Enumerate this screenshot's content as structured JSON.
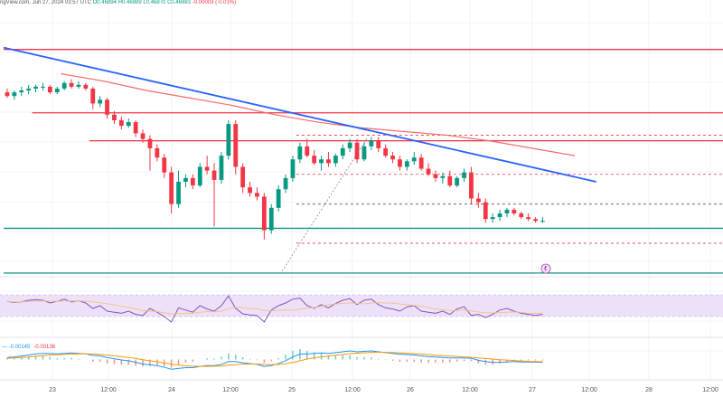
{
  "header": {
    "source": "ngView.com, Jun 27, 2024 03:57 UTC",
    "open": "O0.46894",
    "high": "H0.46989",
    "low": "L0.46870",
    "close": "C0.46883",
    "change": "-0.00003 (-0.01%)"
  },
  "colors": {
    "bull": "#089981",
    "bear": "#f23645",
    "trendline": "#2962ff",
    "resistance": "#f23645",
    "support": "#089981",
    "ma": "#f56b6b",
    "rsi": "#7e57c2",
    "rsi_band": "#e9d9f7",
    "macd": "#2196f3",
    "signal": "#ff9800"
  },
  "chart_data": [
    {
      "type": "candlestick",
      "x_ticks": [
        "23",
        "12:00",
        "24",
        "12:00",
        "25",
        "12:00",
        "26",
        "12:00",
        "27",
        "12:00",
        "28",
        "12:00"
      ],
      "ylim": [
        0,
        100
      ],
      "candles": [
        {
          "o": 82,
          "h": 84,
          "l": 79,
          "c": 80
        },
        {
          "o": 80,
          "h": 83,
          "l": 78,
          "c": 82
        },
        {
          "o": 82,
          "h": 85,
          "l": 80,
          "c": 83
        },
        {
          "o": 83,
          "h": 86,
          "l": 81,
          "c": 84
        },
        {
          "o": 84,
          "h": 86,
          "l": 82,
          "c": 85
        },
        {
          "o": 85,
          "h": 87,
          "l": 83,
          "c": 85
        },
        {
          "o": 85,
          "h": 86,
          "l": 81,
          "c": 82
        },
        {
          "o": 82,
          "h": 85,
          "l": 81,
          "c": 84
        },
        {
          "o": 84,
          "h": 88,
          "l": 83,
          "c": 87
        },
        {
          "o": 87,
          "h": 89,
          "l": 84,
          "c": 85
        },
        {
          "o": 85,
          "h": 88,
          "l": 84,
          "c": 86
        },
        {
          "o": 86,
          "h": 87,
          "l": 83,
          "c": 84
        },
        {
          "o": 84,
          "h": 85,
          "l": 73,
          "c": 76
        },
        {
          "o": 76,
          "h": 80,
          "l": 74,
          "c": 78
        },
        {
          "o": 78,
          "h": 79,
          "l": 68,
          "c": 70
        },
        {
          "o": 70,
          "h": 72,
          "l": 65,
          "c": 67
        },
        {
          "o": 67,
          "h": 69,
          "l": 62,
          "c": 64
        },
        {
          "o": 64,
          "h": 68,
          "l": 63,
          "c": 66
        },
        {
          "o": 66,
          "h": 67,
          "l": 58,
          "c": 60
        },
        {
          "o": 60,
          "h": 62,
          "l": 55,
          "c": 57
        },
        {
          "o": 57,
          "h": 59,
          "l": 40,
          "c": 52
        },
        {
          "o": 52,
          "h": 54,
          "l": 45,
          "c": 47
        },
        {
          "o": 47,
          "h": 49,
          "l": 36,
          "c": 39
        },
        {
          "o": 39,
          "h": 42,
          "l": 17,
          "c": 22
        },
        {
          "o": 22,
          "h": 40,
          "l": 20,
          "c": 34
        },
        {
          "o": 34,
          "h": 38,
          "l": 31,
          "c": 36
        },
        {
          "o": 36,
          "h": 38,
          "l": 30,
          "c": 32
        },
        {
          "o": 32,
          "h": 44,
          "l": 31,
          "c": 42
        },
        {
          "o": 42,
          "h": 48,
          "l": 38,
          "c": 40
        },
        {
          "o": 40,
          "h": 44,
          "l": 10,
          "c": 35
        },
        {
          "o": 35,
          "h": 50,
          "l": 33,
          "c": 48
        },
        {
          "o": 48,
          "h": 67,
          "l": 46,
          "c": 65
        },
        {
          "o": 65,
          "h": 67,
          "l": 38,
          "c": 42
        },
        {
          "o": 42,
          "h": 44,
          "l": 28,
          "c": 31
        },
        {
          "o": 31,
          "h": 34,
          "l": 26,
          "c": 28
        },
        {
          "o": 28,
          "h": 31,
          "l": 24,
          "c": 26
        },
        {
          "o": 26,
          "h": 28,
          "l": 3,
          "c": 8
        },
        {
          "o": 8,
          "h": 22,
          "l": 6,
          "c": 20
        },
        {
          "o": 20,
          "h": 32,
          "l": 18,
          "c": 30
        },
        {
          "o": 30,
          "h": 38,
          "l": 28,
          "c": 36
        },
        {
          "o": 36,
          "h": 48,
          "l": 34,
          "c": 46
        },
        {
          "o": 46,
          "h": 55,
          "l": 44,
          "c": 53
        },
        {
          "o": 53,
          "h": 57,
          "l": 47,
          "c": 48
        },
        {
          "o": 48,
          "h": 51,
          "l": 43,
          "c": 44
        },
        {
          "o": 44,
          "h": 48,
          "l": 40,
          "c": 46
        },
        {
          "o": 46,
          "h": 50,
          "l": 42,
          "c": 44
        },
        {
          "o": 44,
          "h": 49,
          "l": 42,
          "c": 48
        },
        {
          "o": 48,
          "h": 54,
          "l": 46,
          "c": 52
        },
        {
          "o": 52,
          "h": 57,
          "l": 50,
          "c": 55
        },
        {
          "o": 55,
          "h": 57,
          "l": 44,
          "c": 46
        },
        {
          "o": 46,
          "h": 55,
          "l": 45,
          "c": 53
        },
        {
          "o": 53,
          "h": 58,
          "l": 51,
          "c": 56
        },
        {
          "o": 56,
          "h": 58,
          "l": 50,
          "c": 52
        },
        {
          "o": 52,
          "h": 54,
          "l": 47,
          "c": 48
        },
        {
          "o": 48,
          "h": 50,
          "l": 44,
          "c": 46
        },
        {
          "o": 46,
          "h": 48,
          "l": 40,
          "c": 42
        },
        {
          "o": 42,
          "h": 46,
          "l": 40,
          "c": 45
        },
        {
          "o": 45,
          "h": 50,
          "l": 43,
          "c": 47
        },
        {
          "o": 47,
          "h": 49,
          "l": 40,
          "c": 41
        },
        {
          "o": 41,
          "h": 44,
          "l": 37,
          "c": 38
        },
        {
          "o": 38,
          "h": 40,
          "l": 34,
          "c": 36
        },
        {
          "o": 36,
          "h": 39,
          "l": 33,
          "c": 37
        },
        {
          "o": 37,
          "h": 40,
          "l": 31,
          "c": 32
        },
        {
          "o": 32,
          "h": 37,
          "l": 31,
          "c": 36
        },
        {
          "o": 36,
          "h": 41,
          "l": 34,
          "c": 39
        },
        {
          "o": 39,
          "h": 42,
          "l": 22,
          "c": 25
        },
        {
          "o": 25,
          "h": 28,
          "l": 20,
          "c": 23
        },
        {
          "o": 23,
          "h": 25,
          "l": 12,
          "c": 14
        },
        {
          "o": 14,
          "h": 17,
          "l": 12,
          "c": 15
        },
        {
          "o": 15,
          "h": 19,
          "l": 13,
          "c": 17
        },
        {
          "o": 17,
          "h": 20,
          "l": 15,
          "c": 19
        },
        {
          "o": 19,
          "h": 20,
          "l": 16,
          "c": 17
        },
        {
          "o": 17,
          "h": 18,
          "l": 14,
          "c": 15
        },
        {
          "o": 15,
          "h": 17,
          "l": 13,
          "c": 14
        },
        {
          "o": 14,
          "h": 15,
          "l": 12,
          "c": 13
        },
        {
          "o": 13,
          "h": 15,
          "l": 12,
          "c": 13
        }
      ],
      "trendline": [
        {
          "t": 0,
          "v": 106
        },
        {
          "t": 83,
          "v": 34
        }
      ],
      "moving_average": [
        {
          "t": 8,
          "v": 92
        },
        {
          "t": 14,
          "v": 88
        },
        {
          "t": 20,
          "v": 83
        },
        {
          "t": 26,
          "v": 79
        },
        {
          "t": 32,
          "v": 75
        },
        {
          "t": 38,
          "v": 70
        },
        {
          "t": 44,
          "v": 66
        },
        {
          "t": 50,
          "v": 63
        },
        {
          "t": 56,
          "v": 61
        },
        {
          "t": 62,
          "v": 59
        },
        {
          "t": 68,
          "v": 56
        },
        {
          "t": 74,
          "v": 52
        },
        {
          "t": 80,
          "v": 48
        }
      ],
      "resistance_levels": [
        {
          "value": 105,
          "t_start": 0,
          "t_end": 105
        },
        {
          "value": 71,
          "t_start": 4,
          "t_end": 105
        },
        {
          "value": 56,
          "t_start": 12,
          "t_end": 105
        }
      ],
      "support_levels": [
        {
          "value": 9,
          "t_start": 0,
          "t_end": 105
        },
        {
          "value": -15,
          "t_start": 0,
          "t_end": 105
        }
      ],
      "dashed_levels": [
        {
          "value": 59,
          "t_start": 41,
          "t_end": 105,
          "color": "#f23645"
        },
        {
          "value": 38,
          "t_start": 41,
          "t_end": 105,
          "color": "#f23645"
        },
        {
          "value": 22,
          "t_start": 41,
          "t_end": 105,
          "color": "#555555"
        },
        {
          "value": 1,
          "t_start": 41,
          "t_end": 105,
          "color": "#f23645"
        }
      ],
      "measure_line": [
        {
          "t": 39,
          "v": -14
        },
        {
          "t": 51,
          "v": 58
        }
      ]
    },
    {
      "type": "line",
      "name": "RSI",
      "ylim": [
        0,
        100
      ],
      "band": [
        30,
        70
      ],
      "values": [
        58,
        56,
        57,
        60,
        61,
        60,
        55,
        58,
        62,
        57,
        59,
        55,
        45,
        50,
        40,
        38,
        36,
        40,
        34,
        32,
        45,
        38,
        30,
        20,
        46,
        42,
        38,
        50,
        44,
        40,
        50,
        68,
        45,
        35,
        33,
        32,
        20,
        42,
        50,
        55,
        62,
        64,
        50,
        45,
        52,
        46,
        54,
        60,
        63,
        52,
        60,
        62,
        52,
        46,
        44,
        40,
        48,
        50,
        40,
        38,
        36,
        40,
        34,
        44,
        48,
        32,
        34,
        28,
        34,
        42,
        45,
        40,
        36,
        34,
        32,
        34
      ]
    },
    {
      "type": "line",
      "name": "MACD",
      "ylim": [
        -100,
        100
      ],
      "macd": [
        10,
        12,
        18,
        22,
        28,
        30,
        30,
        28,
        30,
        32,
        30,
        28,
        20,
        18,
        10,
        4,
        -2,
        -6,
        -14,
        -22,
        -26,
        -30,
        -38,
        -48,
        -44,
        -40,
        -40,
        -34,
        -30,
        -30,
        -24,
        -10,
        -10,
        -16,
        -20,
        -24,
        -34,
        -30,
        -20,
        -6,
        12,
        26,
        28,
        30,
        32,
        30,
        34,
        38,
        42,
        38,
        40,
        42,
        38,
        34,
        30,
        26,
        24,
        22,
        18,
        14,
        12,
        10,
        8,
        8,
        8,
        6,
        -4,
        -10,
        -14,
        -14,
        -12,
        -10,
        -12,
        -12,
        -13,
        -14
      ],
      "signal": [
        6,
        8,
        10,
        13,
        16,
        19,
        22,
        24,
        25,
        27,
        28,
        28,
        27,
        25,
        22,
        18,
        14,
        10,
        5,
        -1,
        -6,
        -11,
        -17,
        -23,
        -28,
        -31,
        -33,
        -34,
        -34,
        -33,
        -32,
        -28,
        -25,
        -23,
        -22,
        -22,
        -24,
        -25,
        -24,
        -21,
        -14,
        -6,
        2,
        8,
        13,
        17,
        21,
        25,
        29,
        31,
        33,
        35,
        36,
        35,
        34,
        33,
        31,
        29,
        27,
        24,
        21,
        19,
        17,
        15,
        13,
        11,
        8,
        5,
        2,
        -1,
        -3,
        -5,
        -7,
        -9,
        -10,
        -11
      ],
      "histogram_labels": [
        "-0.00145",
        "-0.00136"
      ]
    }
  ]
}
